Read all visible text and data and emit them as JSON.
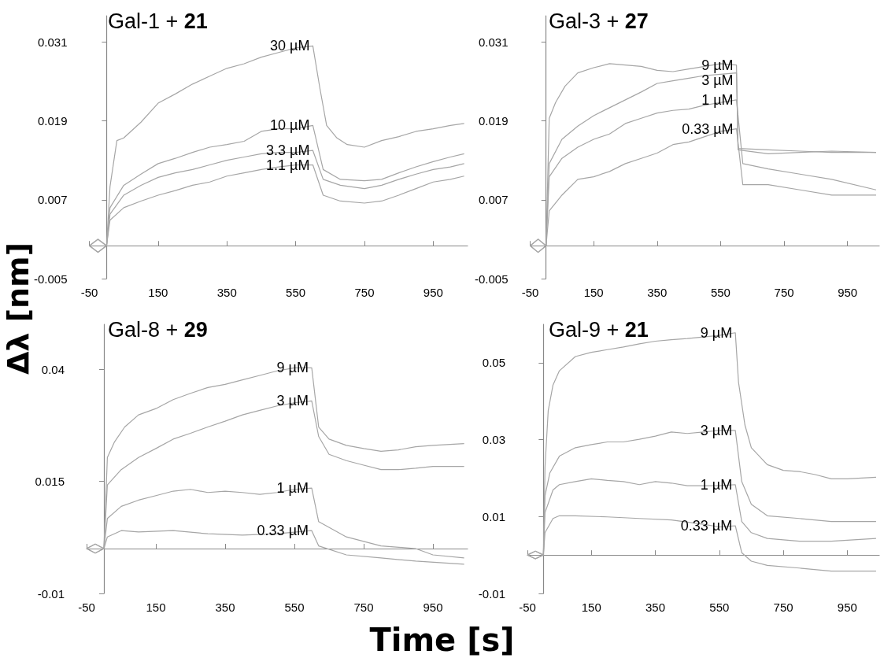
{
  "chart_data": [
    {
      "type": "line",
      "title": "Gal-1 + 21",
      "ylabel": "Δλ [nm]",
      "xlabel": "Time [s]",
      "xlim": [
        -50,
        1050
      ],
      "xticks": [
        -50,
        150,
        350,
        550,
        750,
        950
      ],
      "ylim": [
        -0.005,
        0.035
      ],
      "yticks": [
        -0.005,
        0.007,
        0.019,
        0.031
      ],
      "grid": false,
      "legend": false,
      "series": [
        {
          "name": "30 µM",
          "color": "#a6a6a6",
          "x": [
            -50,
            -25,
            0,
            10,
            30,
            50,
            100,
            150,
            200,
            250,
            300,
            350,
            400,
            450,
            500,
            550,
            600,
            620,
            640,
            670,
            700,
            750,
            800,
            850,
            900,
            950,
            1000,
            1040
          ],
          "values": [
            0,
            0.001,
            0,
            0.009,
            0.016,
            0.0164,
            0.0188,
            0.0217,
            0.0231,
            0.0246,
            0.0258,
            0.027,
            0.0277,
            0.0287,
            0.0294,
            0.0301,
            0.0304,
            0.0241,
            0.0183,
            0.0164,
            0.0154,
            0.015,
            0.016,
            0.0166,
            0.0174,
            0.0178,
            0.0183,
            0.0186
          ]
        },
        {
          "name": "10 µM",
          "color": "#a6a6a6",
          "x": [
            -50,
            -25,
            0,
            10,
            50,
            100,
            150,
            200,
            250,
            300,
            350,
            400,
            450,
            500,
            550,
            600,
            630,
            680,
            750,
            800,
            850,
            900,
            950,
            1000,
            1040
          ],
          "values": [
            0,
            -0.001,
            0,
            0.0058,
            0.0092,
            0.0109,
            0.0125,
            0.0133,
            0.0142,
            0.015,
            0.0154,
            0.0159,
            0.0174,
            0.0178,
            0.0178,
            0.0183,
            0.0116,
            0.0101,
            0.0099,
            0.0101,
            0.0111,
            0.012,
            0.0128,
            0.0135,
            0.014
          ]
        },
        {
          "name": "3.3 µM",
          "color": "#a6a6a6",
          "x": [
            -50,
            -25,
            0,
            10,
            50,
            100,
            150,
            200,
            250,
            300,
            350,
            400,
            450,
            500,
            550,
            600,
            630,
            680,
            750,
            800,
            850,
            900,
            950,
            1000,
            1040
          ],
          "values": [
            0,
            0.001,
            0,
            0.0048,
            0.0077,
            0.0092,
            0.0104,
            0.0111,
            0.0116,
            0.0123,
            0.013,
            0.0135,
            0.014,
            0.0142,
            0.0142,
            0.0145,
            0.0101,
            0.0092,
            0.0087,
            0.0092,
            0.0101,
            0.0109,
            0.0116,
            0.012,
            0.0125
          ]
        },
        {
          "name": "1.1 µM",
          "color": "#a6a6a6",
          "x": [
            -50,
            -25,
            0,
            10,
            50,
            100,
            150,
            200,
            250,
            300,
            350,
            400,
            450,
            500,
            550,
            600,
            630,
            680,
            750,
            800,
            850,
            900,
            950,
            1000,
            1040
          ],
          "values": [
            0,
            -0.001,
            0,
            0.0039,
            0.0058,
            0.0068,
            0.0077,
            0.0084,
            0.0092,
            0.0097,
            0.0106,
            0.0111,
            0.0116,
            0.012,
            0.0123,
            0.0123,
            0.0077,
            0.0068,
            0.0065,
            0.0068,
            0.0077,
            0.0087,
            0.0097,
            0.0101,
            0.0106
          ]
        }
      ]
    },
    {
      "type": "line",
      "title": "Gal-3 + 27",
      "xlim": [
        -50,
        1050
      ],
      "xticks": [
        -50,
        150,
        350,
        550,
        750,
        950
      ],
      "ylim": [
        -0.005,
        0.035
      ],
      "yticks": [
        -0.005,
        0.007,
        0.019,
        0.031
      ],
      "grid": false,
      "legend": false,
      "series": [
        {
          "name": "9 µM",
          "color": "#a6a6a6",
          "x": [
            -50,
            -25,
            0,
            10,
            30,
            60,
            100,
            150,
            200,
            250,
            300,
            350,
            400,
            450,
            500,
            550,
            600,
            605,
            700,
            800,
            900,
            1040
          ],
          "values": [
            0,
            -0.001,
            0,
            0.0194,
            0.0218,
            0.0243,
            0.0263,
            0.0271,
            0.0277,
            0.0275,
            0.0273,
            0.0267,
            0.0265,
            0.0269,
            0.0273,
            0.0277,
            0.0275,
            0.0148,
            0.0146,
            0.0144,
            0.0142,
            0.0142
          ]
        },
        {
          "name": "3 µM",
          "color": "#a6a6a6",
          "x": [
            -50,
            -25,
            0,
            10,
            50,
            100,
            150,
            200,
            250,
            300,
            350,
            400,
            450,
            500,
            550,
            600,
            605,
            700,
            800,
            900,
            1040
          ],
          "values": [
            0,
            0.001,
            0,
            0.0125,
            0.0162,
            0.0182,
            0.0198,
            0.021,
            0.0222,
            0.0234,
            0.0247,
            0.0251,
            0.0255,
            0.0259,
            0.0261,
            0.0263,
            0.0146,
            0.014,
            0.0142,
            0.0144,
            0.0142
          ]
        },
        {
          "name": "1 µM",
          "color": "#a6a6a6",
          "x": [
            -50,
            -25,
            0,
            10,
            50,
            100,
            150,
            200,
            250,
            300,
            350,
            400,
            450,
            500,
            550,
            600,
            620,
            700,
            800,
            900,
            1040
          ],
          "values": [
            0,
            -0.001,
            0,
            0.0105,
            0.0133,
            0.015,
            0.0162,
            0.017,
            0.0186,
            0.0194,
            0.0202,
            0.0206,
            0.0208,
            0.0214,
            0.0218,
            0.0222,
            0.0125,
            0.0117,
            0.0109,
            0.0101,
            0.0085
          ]
        },
        {
          "name": "0.33 µM",
          "color": "#a6a6a6",
          "x": [
            -50,
            -25,
            0,
            10,
            50,
            100,
            150,
            200,
            250,
            300,
            350,
            400,
            450,
            500,
            550,
            600,
            620,
            700,
            800,
            900,
            1040
          ],
          "values": [
            0,
            0.001,
            0,
            0.0053,
            0.0077,
            0.0101,
            0.0105,
            0.0113,
            0.0125,
            0.0133,
            0.0141,
            0.0154,
            0.0158,
            0.0166,
            0.0174,
            0.0178,
            0.0093,
            0.0093,
            0.0085,
            0.0077,
            0.0077
          ]
        }
      ]
    },
    {
      "type": "line",
      "title": "Gal-8 + 29",
      "xlim": [
        -50,
        1050
      ],
      "xticks": [
        -50,
        150,
        350,
        550,
        750,
        950
      ],
      "ylim": [
        -0.01,
        0.05
      ],
      "yticks": [
        -0.01,
        0.015,
        0.04
      ],
      "grid": false,
      "legend": false,
      "series": [
        {
          "name": "9 µM",
          "color": "#a6a6a6",
          "x": [
            -50,
            -25,
            0,
            10,
            30,
            60,
            100,
            150,
            200,
            250,
            300,
            350,
            400,
            450,
            500,
            550,
            600,
            620,
            650,
            700,
            750,
            800,
            850,
            900,
            950,
            1040
          ],
          "values": [
            0,
            0.001,
            0,
            0.0203,
            0.0237,
            0.0271,
            0.0298,
            0.0312,
            0.0332,
            0.0346,
            0.0359,
            0.0366,
            0.0376,
            0.0386,
            0.0396,
            0.0403,
            0.0403,
            0.0271,
            0.0244,
            0.023,
            0.0223,
            0.0217,
            0.022,
            0.0227,
            0.023,
            0.0234
          ]
        },
        {
          "name": "3 µM",
          "color": "#a6a6a6",
          "x": [
            -50,
            -25,
            0,
            10,
            50,
            100,
            150,
            200,
            250,
            300,
            350,
            400,
            450,
            500,
            550,
            600,
            620,
            650,
            700,
            750,
            800,
            850,
            900,
            950,
            1040
          ],
          "values": [
            0,
            -0.001,
            0,
            0.0142,
            0.0176,
            0.0203,
            0.0223,
            0.0244,
            0.0257,
            0.0271,
            0.0284,
            0.0298,
            0.0308,
            0.0318,
            0.0325,
            0.0329,
            0.025,
            0.021,
            0.0196,
            0.0186,
            0.0176,
            0.0176,
            0.0179,
            0.0183,
            0.0183
          ]
        },
        {
          "name": "1 µM",
          "color": "#a6a6a6",
          "x": [
            -50,
            -25,
            0,
            10,
            50,
            100,
            150,
            200,
            250,
            300,
            350,
            400,
            450,
            500,
            550,
            600,
            620,
            700,
            800,
            900,
            950,
            1040
          ],
          "values": [
            0,
            0.001,
            0,
            0.0067,
            0.0094,
            0.0108,
            0.0118,
            0.0128,
            0.0132,
            0.0125,
            0.0128,
            0.0125,
            0.0121,
            0.0125,
            0.0132,
            0.0135,
            0.006,
            0.0026,
            0.0006,
            0,
            -0.0014,
            -0.0021
          ]
        },
        {
          "name": "0.33 µM",
          "color": "#a6a6a6",
          "x": [
            -50,
            -25,
            0,
            10,
            50,
            100,
            200,
            300,
            400,
            500,
            600,
            620,
            700,
            800,
            900,
            1040
          ],
          "values": [
            0,
            -0.001,
            0,
            0.0026,
            0.004,
            0.0037,
            0.004,
            0.0033,
            0.003,
            0.0033,
            0.004,
            0.0006,
            -0.0014,
            -0.0021,
            -0.0028,
            -0.0035
          ]
        }
      ]
    },
    {
      "type": "line",
      "title": "Gal-9 + 21",
      "xlim": [
        -50,
        1050
      ],
      "xticks": [
        -50,
        150,
        350,
        550,
        750,
        950
      ],
      "ylim": [
        -0.01,
        0.06
      ],
      "yticks": [
        -0.01,
        0.01,
        0.03,
        0.05
      ],
      "grid": false,
      "legend": false,
      "series": [
        {
          "name": "9 µM",
          "color": "#a6a6a6",
          "x": [
            -50,
            -25,
            0,
            5,
            15,
            30,
            50,
            100,
            150,
            200,
            250,
            300,
            350,
            400,
            450,
            500,
            550,
            600,
            610,
            630,
            650,
            700,
            750,
            800,
            850,
            900,
            950,
            1040
          ],
          "values": [
            0,
            0.001,
            0,
            0.0228,
            0.0375,
            0.0442,
            0.0479,
            0.0516,
            0.0527,
            0.0534,
            0.0541,
            0.0549,
            0.0556,
            0.056,
            0.0563,
            0.0567,
            0.0571,
            0.0578,
            0.0449,
            0.0338,
            0.0279,
            0.0235,
            0.022,
            0.0217,
            0.0209,
            0.0198,
            0.0198,
            0.0202
          ]
        },
        {
          "name": "3 µM",
          "color": "#a6a6a6",
          "x": [
            -50,
            -25,
            0,
            5,
            20,
            50,
            100,
            150,
            200,
            250,
            300,
            350,
            400,
            450,
            500,
            550,
            600,
            620,
            650,
            700,
            800,
            900,
            1040
          ],
          "values": [
            0,
            -0.001,
            0,
            0.0154,
            0.0213,
            0.0257,
            0.0279,
            0.0287,
            0.0294,
            0.0294,
            0.0301,
            0.0309,
            0.032,
            0.0316,
            0.032,
            0.0324,
            0.0324,
            0.0191,
            0.0132,
            0.0102,
            0.0095,
            0.0087,
            0.0087
          ]
        },
        {
          "name": "1 µM",
          "color": "#a6a6a6",
          "x": [
            -50,
            -25,
            0,
            5,
            30,
            50,
            100,
            150,
            200,
            250,
            300,
            350,
            400,
            450,
            500,
            550,
            600,
            620,
            650,
            700,
            800,
            900,
            1040
          ],
          "values": [
            0,
            0.001,
            0,
            0.011,
            0.0169,
            0.0183,
            0.0191,
            0.0198,
            0.0194,
            0.0191,
            0.0183,
            0.0191,
            0.0187,
            0.018,
            0.018,
            0.018,
            0.0183,
            0.0087,
            0.0058,
            0.0043,
            0.0036,
            0.0036,
            0.0043
          ]
        },
        {
          "name": "0.33 µM",
          "color": "#a6a6a6",
          "x": [
            -50,
            -25,
            0,
            5,
            30,
            50,
            100,
            200,
            300,
            400,
            500,
            550,
            600,
            620,
            650,
            700,
            800,
            900,
            1040
          ],
          "values": [
            0,
            -0.001,
            0,
            0.0058,
            0.0095,
            0.0102,
            0.0102,
            0.0099,
            0.0095,
            0.0091,
            0.008,
            0.0073,
            0.0076,
            0.0006,
            -0.0016,
            -0.0027,
            -0.0034,
            -0.0042,
            -0.0042
          ]
        }
      ]
    }
  ]
}
